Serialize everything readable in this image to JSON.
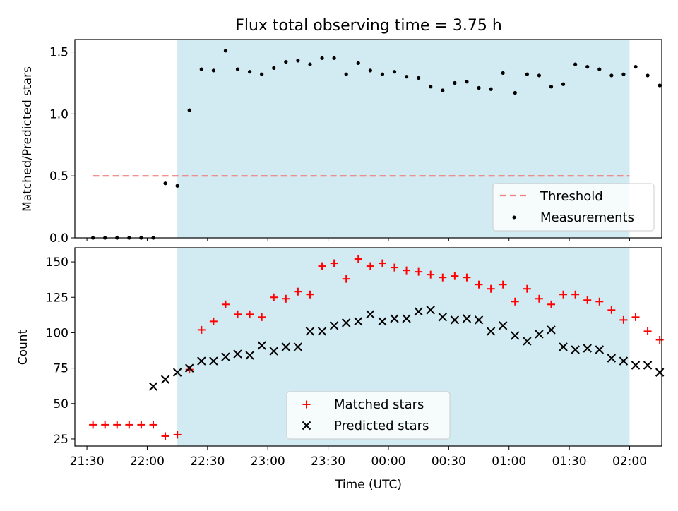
{
  "title": "Flux total observing time = 3.75 h",
  "colors": {
    "shade": "#add8e6",
    "threshold": "#f08080",
    "measurement": "#000000",
    "matched": "#ff0000",
    "predicted": "#000000"
  },
  "chart_data": [
    {
      "type": "scatter",
      "ylabel": "Matched/Predicted stars",
      "ylim": [
        0,
        1.6
      ],
      "yticks": [
        "0.0",
        "0.5",
        "1.0",
        "1.5"
      ],
      "xlim": [
        "21:24",
        "02:16"
      ],
      "shaded_interval": [
        "22:15",
        "02:00"
      ],
      "grid": false,
      "legend_position": "lower right",
      "legend": [
        "Threshold",
        "Measurements"
      ],
      "threshold": {
        "name": "Threshold",
        "y": 0.5,
        "x_from": "21:33",
        "x_to": "02:00"
      },
      "series": [
        {
          "name": "Measurements",
          "x": [
            "21:33",
            "21:39",
            "21:45",
            "21:51",
            "21:57",
            "22:03",
            "22:09",
            "22:15",
            "22:21",
            "22:27",
            "22:33",
            "22:39",
            "22:45",
            "22:51",
            "22:57",
            "23:03",
            "23:09",
            "23:15",
            "23:21",
            "23:27",
            "23:33",
            "23:39",
            "23:45",
            "23:51",
            "23:57",
            "00:03",
            "00:09",
            "00:15",
            "00:21",
            "00:27",
            "00:33",
            "00:39",
            "00:45",
            "00:51",
            "00:57",
            "01:03",
            "01:09",
            "01:15",
            "01:21",
            "01:27",
            "01:33",
            "01:39",
            "01:45",
            "01:51",
            "01:57",
            "02:03",
            "02:09",
            "02:15"
          ],
          "y": [
            0,
            0,
            0,
            0,
            0,
            0,
            0.44,
            0.42,
            1.03,
            1.36,
            1.35,
            1.51,
            1.36,
            1.34,
            1.32,
            1.37,
            1.42,
            1.43,
            1.4,
            1.45,
            1.45,
            1.32,
            1.41,
            1.35,
            1.32,
            1.34,
            1.3,
            1.29,
            1.22,
            1.19,
            1.25,
            1.26,
            1.21,
            1.2,
            1.33,
            1.17,
            1.32,
            1.31,
            1.22,
            1.24,
            1.4,
            1.38,
            1.36,
            1.31,
            1.32,
            1.38,
            1.31,
            1.23
          ]
        }
      ]
    },
    {
      "type": "scatter",
      "ylabel": "Count",
      "xlabel": "Time (UTC)",
      "ylim": [
        20,
        160
      ],
      "yticks": [
        "25",
        "50",
        "75",
        "100",
        "125",
        "150"
      ],
      "xticks": [
        "21:30",
        "22:00",
        "22:30",
        "23:00",
        "23:30",
        "00:00",
        "00:30",
        "01:00",
        "01:30",
        "02:00"
      ],
      "xlim": [
        "21:24",
        "02:16"
      ],
      "shaded_interval": [
        "22:15",
        "02:00"
      ],
      "grid": false,
      "legend_position": "lower center",
      "legend": [
        "Matched stars",
        "Predicted stars"
      ],
      "series": [
        {
          "name": "Matched stars",
          "marker": "+",
          "x": [
            "21:33",
            "21:39",
            "21:45",
            "21:51",
            "21:57",
            "22:03",
            "22:09",
            "22:15",
            "22:21",
            "22:27",
            "22:33",
            "22:39",
            "22:45",
            "22:51",
            "22:57",
            "23:03",
            "23:09",
            "23:15",
            "23:21",
            "23:27",
            "23:33",
            "23:39",
            "23:45",
            "23:51",
            "23:57",
            "00:03",
            "00:09",
            "00:15",
            "00:21",
            "00:27",
            "00:33",
            "00:39",
            "00:45",
            "00:51",
            "00:57",
            "01:03",
            "01:09",
            "01:15",
            "01:21",
            "01:27",
            "01:33",
            "01:39",
            "01:45",
            "01:51",
            "01:57",
            "02:03",
            "02:09",
            "02:15"
          ],
          "y": [
            35,
            35,
            35,
            35,
            35,
            35,
            27,
            28,
            74,
            102,
            108,
            120,
            113,
            113,
            111,
            125,
            124,
            129,
            127,
            147,
            149,
            138,
            152,
            147,
            149,
            146,
            144,
            143,
            141,
            139,
            140,
            139,
            134,
            131,
            134,
            122,
            131,
            124,
            120,
            127,
            127,
            123,
            122,
            116,
            109,
            111,
            101,
            95
          ]
        },
        {
          "name": "Predicted stars",
          "marker": "x",
          "x": [
            "22:03",
            "22:09",
            "22:15",
            "22:21",
            "22:27",
            "22:33",
            "22:39",
            "22:45",
            "22:51",
            "22:57",
            "23:03",
            "23:09",
            "23:15",
            "23:21",
            "23:27",
            "23:33",
            "23:39",
            "23:45",
            "23:51",
            "23:57",
            "00:03",
            "00:09",
            "00:15",
            "00:21",
            "00:27",
            "00:33",
            "00:39",
            "00:45",
            "00:51",
            "00:57",
            "01:03",
            "01:09",
            "01:15",
            "01:21",
            "01:27",
            "01:33",
            "01:39",
            "01:45",
            "01:51",
            "01:57",
            "02:03",
            "02:09",
            "02:15"
          ],
          "y": [
            62,
            67,
            72,
            75,
            80,
            80,
            83,
            85,
            84,
            91,
            87,
            90,
            90,
            101,
            101,
            105,
            107,
            108,
            113,
            108,
            110,
            110,
            115,
            116,
            111,
            109,
            110,
            109,
            101,
            105,
            98,
            94,
            99,
            102,
            90,
            88,
            89,
            88,
            82,
            80,
            77,
            77,
            72
          ]
        }
      ]
    }
  ]
}
